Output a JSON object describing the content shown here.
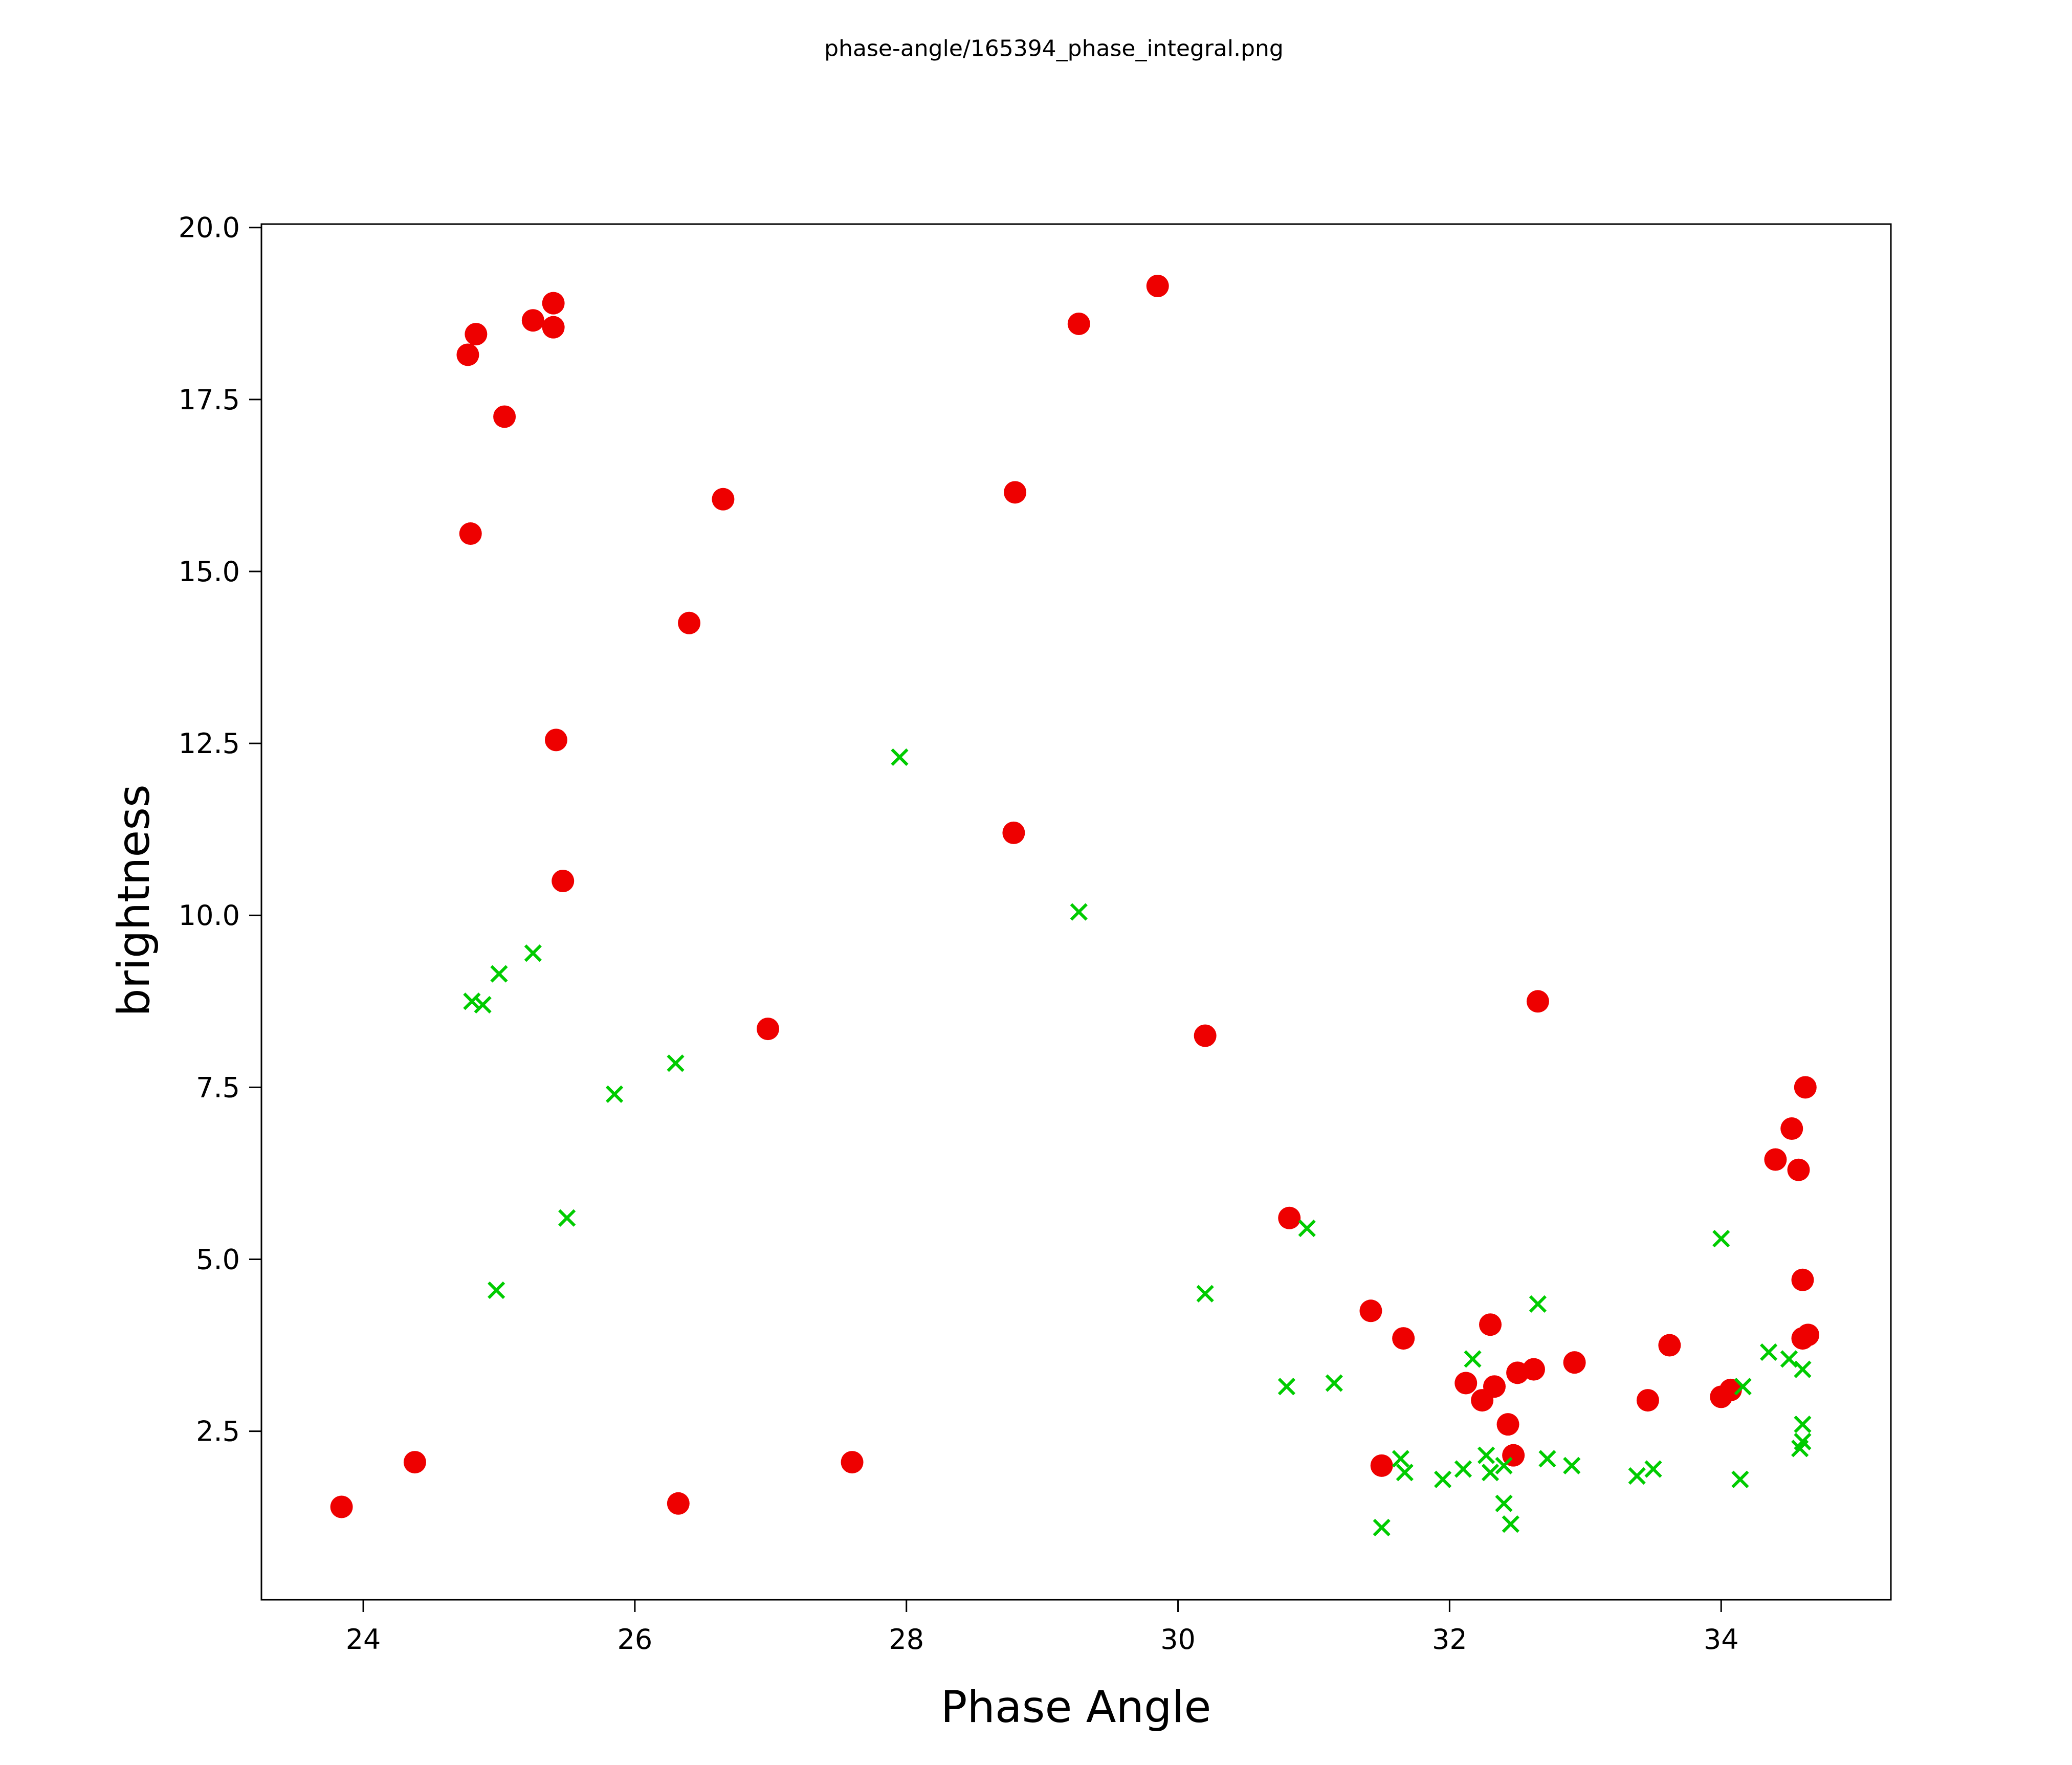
{
  "chart_data": {
    "type": "scatter",
    "title": "phase-angle/165394_phase_integral.png",
    "xlabel": "Phase Angle",
    "ylabel": "brightness",
    "xlim": [
      23.25,
      35.25
    ],
    "ylim": [
      0.05,
      20.05
    ],
    "xticks": [
      24,
      26,
      28,
      30,
      32,
      34
    ],
    "yticks": [
      2.5,
      5.0,
      7.5,
      10.0,
      12.5,
      15.0,
      17.5,
      20.0
    ],
    "grid": false,
    "legend": "none",
    "colors": {
      "red_series": "#ee0000",
      "green_series": "#00cc00"
    },
    "series": [
      {
        "name": "red-circles",
        "marker": "circle",
        "color": "#ee0000",
        "points": [
          [
            23.84,
            1.4
          ],
          [
            24.38,
            2.05
          ],
          [
            24.79,
            15.55
          ],
          [
            24.77,
            18.15
          ],
          [
            24.83,
            18.45
          ],
          [
            25.04,
            17.25
          ],
          [
            25.25,
            18.65
          ],
          [
            25.4,
            18.9
          ],
          [
            25.4,
            18.55
          ],
          [
            25.42,
            12.55
          ],
          [
            25.47,
            10.5
          ],
          [
            26.32,
            1.45
          ],
          [
            26.4,
            14.25
          ],
          [
            26.65,
            16.05
          ],
          [
            26.98,
            8.35
          ],
          [
            27.6,
            2.05
          ],
          [
            28.79,
            11.2
          ],
          [
            28.8,
            16.15
          ],
          [
            29.27,
            18.6
          ],
          [
            29.85,
            19.15
          ],
          [
            30.2,
            8.25
          ],
          [
            30.82,
            5.6
          ],
          [
            31.42,
            4.25
          ],
          [
            31.5,
            2.0
          ],
          [
            31.66,
            3.85
          ],
          [
            32.12,
            3.2
          ],
          [
            32.24,
            2.95
          ],
          [
            32.3,
            4.05
          ],
          [
            32.33,
            3.15
          ],
          [
            32.43,
            2.6
          ],
          [
            32.47,
            2.15
          ],
          [
            32.5,
            3.35
          ],
          [
            32.62,
            3.4
          ],
          [
            32.65,
            8.75
          ],
          [
            32.92,
            3.5
          ],
          [
            33.46,
            2.95
          ],
          [
            33.62,
            3.75
          ],
          [
            34.0,
            3.0
          ],
          [
            34.07,
            3.1
          ],
          [
            34.4,
            6.45
          ],
          [
            34.52,
            6.9
          ],
          [
            34.57,
            6.3
          ],
          [
            34.6,
            4.7
          ],
          [
            34.6,
            3.85
          ],
          [
            34.62,
            7.5
          ],
          [
            34.64,
            3.9
          ]
        ]
      },
      {
        "name": "green-crosses",
        "marker": "x",
        "color": "#00cc00",
        "points": [
          [
            24.8,
            8.75
          ],
          [
            24.88,
            8.7
          ],
          [
            24.98,
            4.55
          ],
          [
            25.0,
            9.15
          ],
          [
            25.25,
            9.45
          ],
          [
            25.5,
            5.6
          ],
          [
            25.85,
            7.4
          ],
          [
            26.3,
            7.85
          ],
          [
            27.95,
            12.3
          ],
          [
            29.27,
            10.05
          ],
          [
            30.2,
            4.5
          ],
          [
            30.8,
            3.15
          ],
          [
            30.95,
            5.45
          ],
          [
            31.15,
            3.2
          ],
          [
            31.5,
            1.1
          ],
          [
            31.64,
            2.1
          ],
          [
            31.67,
            1.9
          ],
          [
            31.95,
            1.8
          ],
          [
            32.1,
            1.95
          ],
          [
            32.17,
            3.55
          ],
          [
            32.27,
            2.15
          ],
          [
            32.3,
            1.9
          ],
          [
            32.4,
            2.0
          ],
          [
            32.4,
            1.45
          ],
          [
            32.45,
            1.15
          ],
          [
            32.65,
            4.35
          ],
          [
            32.72,
            2.1
          ],
          [
            32.9,
            2.0
          ],
          [
            33.38,
            1.85
          ],
          [
            33.5,
            1.95
          ],
          [
            34.0,
            5.3
          ],
          [
            34.14,
            1.8
          ],
          [
            34.16,
            3.15
          ],
          [
            34.35,
            3.65
          ],
          [
            34.5,
            3.55
          ],
          [
            34.58,
            2.25
          ],
          [
            34.6,
            3.4
          ],
          [
            34.6,
            2.6
          ],
          [
            34.6,
            2.35
          ]
        ]
      }
    ]
  }
}
